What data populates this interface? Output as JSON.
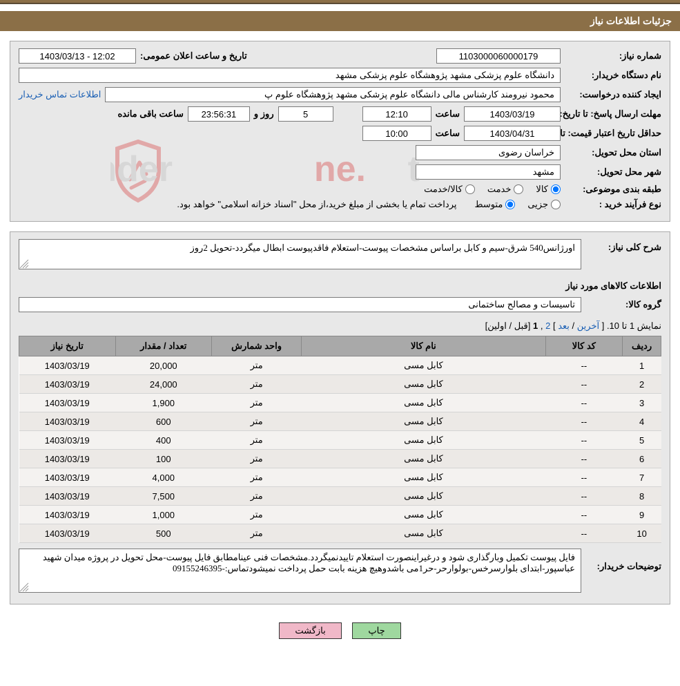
{
  "header": {
    "title": "جزئیات اطلاعات نیاز"
  },
  "info": {
    "need_no_label": "شماره نیاز:",
    "need_no": "1103000060000179",
    "announce_label": "تاریخ و ساعت اعلان عمومی:",
    "announce_val": "12:02 - 1403/03/13",
    "buyer_label": "نام دستگاه خریدار:",
    "buyer_val": "دانشگاه علوم پزشکی مشهد   پژوهشگاه علوم پزشکی مشهد",
    "requester_label": "ایجاد کننده درخواست:",
    "requester_val": "محمود نیرومند کارشناس مالی دانشگاه علوم پزشکی مشهد   پژوهشگاه علوم پ",
    "contact_link": "اطلاعات تماس خریدار",
    "deadline_label": "مهلت ارسال پاسخ: تا تاریخ:",
    "deadline_date": "1403/03/19",
    "time_label": "ساعت",
    "deadline_time": "12:10",
    "dayrow_days": "5",
    "dayrow_days_label": "روز و",
    "dayrow_time": "23:56:31",
    "dayrow_remain": "ساعت باقی مانده",
    "validity_label": "حداقل تاریخ اعتبار قیمت: تا تاریخ:",
    "validity_date": "1403/04/31",
    "validity_time": "10:00",
    "province_label": "استان محل تحویل:",
    "province_val": "خراسان رضوی",
    "city_label": "شهر محل تحویل:",
    "city_val": "مشهد",
    "class_label": "طبقه بندی موضوعی:",
    "class_goods": "کالا",
    "class_service": "خدمت",
    "class_both": "کالا/خدمت",
    "buytype_label": "نوع فرآیند خرید :",
    "buytype_partial": "جزیی",
    "buytype_medium": "متوسط",
    "buytype_note": "پرداخت تمام یا بخشی از مبلغ خرید،از محل \"اسناد خزانه اسلامی\" خواهد بود."
  },
  "desc": {
    "full_label": "شرح کلی نیاز:",
    "full_val": "اورژانس540 شرق-سیم و کابل براساس مشخصات پیوست-استعلام فاقدپیوست ابطال میگردد-تحویل 2روز",
    "goods_title": "اطلاعات کالاهای مورد نیاز",
    "group_label": "گروه کالا:",
    "group_val": "تاسیسات و مصالح ساختمانی",
    "pagination_pre": "نمایش 1 تا 10. [",
    "pagination_last": "آخرین",
    "pagination_sep1": " / ",
    "pagination_next": "بعد",
    "pagination_sep2": "] ",
    "pagination_page": "2",
    "pagination_comma": " ,",
    "pagination_cur": "1",
    "pagination_post": " [قبل / اولین]",
    "buyer_notes_label": "توضیحات خریدار:",
    "buyer_notes_val": "فایل پیوست تکمیل وبارگذاری شود و درغیراینصورت استعلام تاییدنمیگردد.مشخصات فنی عینامطابق فایل پیوست-محل تحویل در پروژه میدان شهید عباسپور-ابتدای بلوارسرخس-بولوارحر-حر1می باشدوهیچ هزینه بابت حمل  پرداخت نمیشودتماس:-09155246395"
  },
  "table": {
    "cols": [
      "ردیف",
      "کد کالا",
      "نام کالا",
      "واحد شمارش",
      "تعداد / مقدار",
      "تاریخ نیاز"
    ],
    "rows": [
      [
        "1",
        "--",
        "کابل مسی",
        "متر",
        "20,000",
        "1403/03/19"
      ],
      [
        "2",
        "--",
        "کابل مسی",
        "متر",
        "24,000",
        "1403/03/19"
      ],
      [
        "3",
        "--",
        "کابل مسی",
        "متر",
        "1,900",
        "1403/03/19"
      ],
      [
        "4",
        "--",
        "کابل مسی",
        "متر",
        "600",
        "1403/03/19"
      ],
      [
        "5",
        "--",
        "کابل مسی",
        "متر",
        "400",
        "1403/03/19"
      ],
      [
        "6",
        "--",
        "کابل مسی",
        "متر",
        "100",
        "1403/03/19"
      ],
      [
        "7",
        "--",
        "کابل مسی",
        "متر",
        "4,000",
        "1403/03/19"
      ],
      [
        "8",
        "--",
        "کابل مسی",
        "متر",
        "7,500",
        "1403/03/19"
      ],
      [
        "9",
        "--",
        "کابل مسی",
        "متر",
        "1,000",
        "1403/03/19"
      ],
      [
        "10",
        "--",
        "کابل مسی",
        "متر",
        "500",
        "1403/03/19"
      ]
    ]
  },
  "buttons": {
    "print": "چاپ",
    "back": "بازگشت"
  },
  "watermark": {
    "text": "AriaTender.net",
    "color_shield": "#d63333",
    "color_text": "#b8b8b8"
  },
  "colors": {
    "header_bg": "#8b6f47",
    "panel_bg": "#e8e8e8",
    "th_bg": "#a9a9a9",
    "link": "#1a5fb4"
  }
}
